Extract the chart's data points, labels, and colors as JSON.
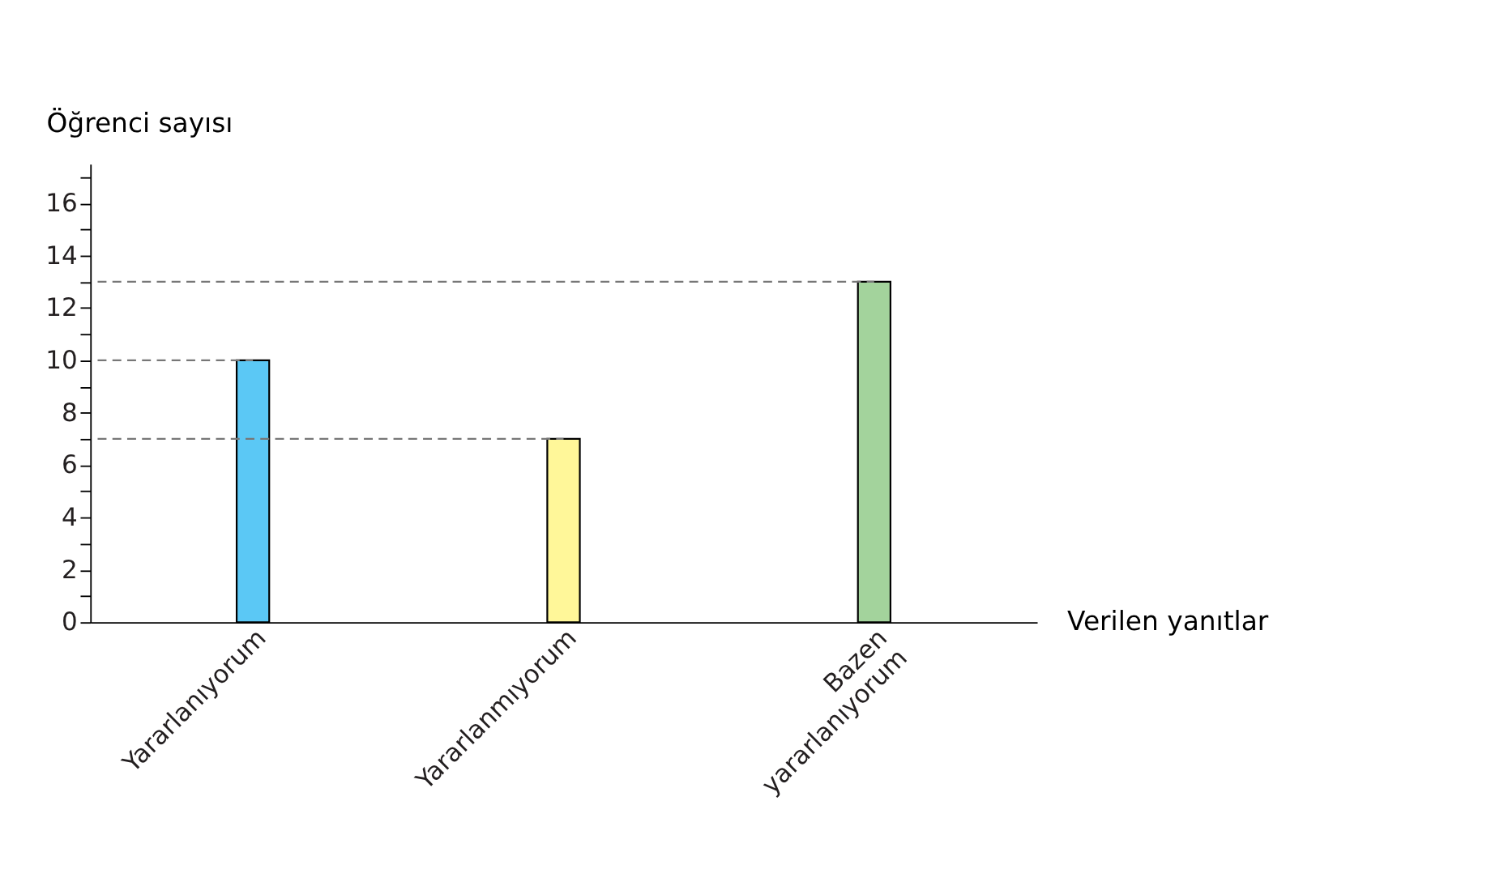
{
  "chart_data": {
    "type": "bar",
    "xlabel": "Verilen yanıtlar",
    "ylabel": "Öğrenci sayısı",
    "categories": [
      "Yararlanıyorum",
      "Yararlanmıyorum",
      "Bazen yararlanıyorum"
    ],
    "values": [
      10,
      7,
      13
    ],
    "colors": [
      "#5bc8f5",
      "#fff799",
      "#a3d39c"
    ],
    "ylim": [
      0,
      17.5
    ],
    "yticks": [
      0,
      {
        "value": 1,
        "label": null
      },
      2,
      {
        "value": 3,
        "label": null
      },
      4,
      {
        "value": 5,
        "label": null
      },
      6,
      {
        "value": 7,
        "label": null
      },
      8,
      {
        "value": 9,
        "label": null
      },
      10,
      {
        "value": 11,
        "label": null
      },
      12,
      {
        "value": 13,
        "label": null
      },
      14,
      {
        "value": 15,
        "label": null
      },
      16,
      {
        "value": 17,
        "label": null
      }
    ],
    "ref_lines": [
      {
        "axis": "y",
        "value": 10,
        "line_style": "dashed"
      },
      {
        "axis": "y",
        "value": 7,
        "line_style": "dashed"
      },
      {
        "axis": "y",
        "value": 13,
        "line_style": "dashed"
      }
    ],
    "grid": false,
    "legend": false
  }
}
